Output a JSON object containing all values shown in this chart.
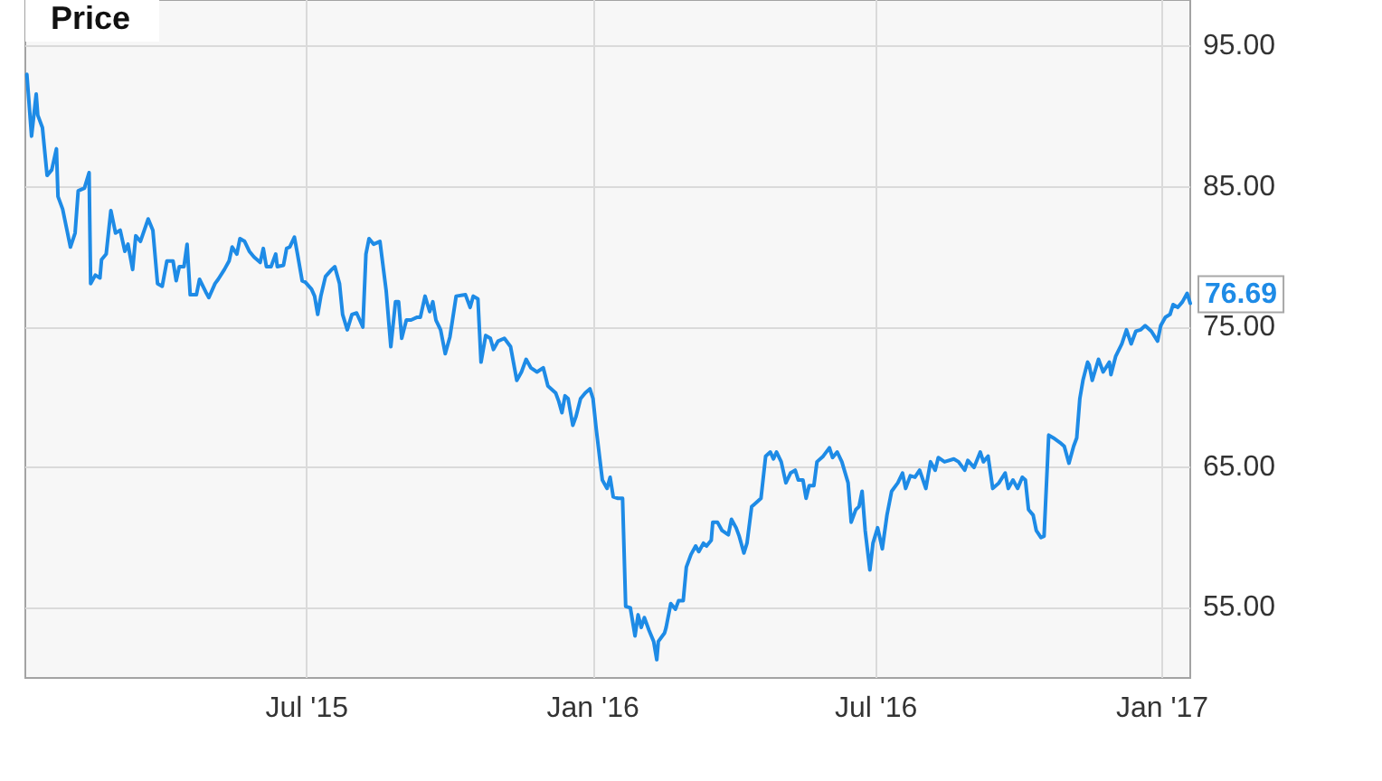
{
  "chart_data": {
    "type": "line",
    "title": "Price",
    "color": "#1e8be6",
    "x": [
      "2015-01-02",
      "2015-01-05",
      "2015-01-08",
      "2015-01-09",
      "2015-01-12",
      "2015-01-15",
      "2015-01-18",
      "2015-01-21",
      "2015-01-22",
      "2015-01-25",
      "2015-01-30",
      "2015-02-02",
      "2015-02-04",
      "2015-02-08",
      "2015-02-11",
      "2015-02-12",
      "2015-02-15",
      "2015-02-18",
      "2015-02-19",
      "2015-02-22",
      "2015-02-25",
      "2015-02-28",
      "2015-03-03",
      "2015-03-06",
      "2015-03-08",
      "2015-03-11",
      "2015-03-13",
      "2015-03-16",
      "2015-03-21",
      "2015-03-24",
      "2015-03-27",
      "2015-03-30",
      "2015-04-02",
      "2015-04-06",
      "2015-04-08",
      "2015-04-10",
      "2015-04-13",
      "2015-04-15",
      "2015-04-17",
      "2015-04-21",
      "2015-04-23",
      "2015-04-27",
      "2015-04-29",
      "2015-05-03",
      "2015-05-05",
      "2015-05-09",
      "2015-05-12",
      "2015-05-14",
      "2015-05-17",
      "2015-05-19",
      "2015-05-22",
      "2015-05-25",
      "2015-05-28",
      "2015-06-01",
      "2015-06-03",
      "2015-06-05",
      "2015-06-08",
      "2015-06-11",
      "2015-06-12",
      "2015-06-16",
      "2015-06-18",
      "2015-06-20",
      "2015-06-23",
      "2015-06-25",
      "2015-06-28",
      "2015-06-30",
      "2015-07-04",
      "2015-07-06",
      "2015-07-08",
      "2015-07-10",
      "2015-07-13",
      "2015-07-17",
      "2015-07-19",
      "2015-07-22",
      "2015-07-24",
      "2015-07-27",
      "2015-07-30",
      "2015-08-02",
      "2015-08-06",
      "2015-08-08",
      "2015-08-10",
      "2015-08-13",
      "2015-08-17",
      "2015-08-21",
      "2015-08-24",
      "2015-08-27",
      "2015-08-29",
      "2015-08-31",
      "2015-09-03",
      "2015-09-06",
      "2015-09-10",
      "2015-09-12",
      "2015-09-15",
      "2015-09-18",
      "2015-09-20",
      "2015-09-22",
      "2015-09-25",
      "2015-09-28",
      "2015-10-01",
      "2015-10-05",
      "2015-10-11",
      "2015-10-14",
      "2015-10-16",
      "2015-10-19",
      "2015-10-21",
      "2015-10-24",
      "2015-10-27",
      "2015-10-29",
      "2015-11-01",
      "2015-11-05",
      "2015-11-09",
      "2015-11-13",
      "2015-11-16",
      "2015-11-19",
      "2015-11-22",
      "2015-11-26",
      "2015-11-30",
      "2015-12-03",
      "2015-12-08",
      "2015-12-10",
      "2015-12-12",
      "2015-12-14",
      "2015-12-16",
      "2015-12-19",
      "2015-12-21",
      "2015-12-24",
      "2015-12-27",
      "2015-12-30",
      "2016-01-01",
      "2016-01-03",
      "2016-01-07",
      "2016-01-10",
      "2016-01-12",
      "2016-01-14",
      "2016-01-17",
      "2016-01-20",
      "2016-01-22",
      "2016-01-25",
      "2016-01-28",
      "2016-01-30",
      "2016-02-01",
      "2016-02-03",
      "2016-02-06",
      "2016-02-09",
      "2016-02-11",
      "2016-02-12",
      "2016-02-16",
      "2016-02-17",
      "2016-02-20",
      "2016-02-23",
      "2016-02-25",
      "2016-02-28",
      "2016-03-01",
      "2016-03-04",
      "2016-03-07",
      "2016-03-09",
      "2016-03-12",
      "2016-03-14",
      "2016-03-17",
      "2016-03-18",
      "2016-03-21",
      "2016-03-24",
      "2016-03-28",
      "2016-03-30",
      "2016-04-02",
      "2016-04-04",
      "2016-04-07",
      "2016-04-09",
      "2016-04-12",
      "2016-04-14",
      "2016-04-18",
      "2016-04-21",
      "2016-04-24",
      "2016-04-26",
      "2016-04-28",
      "2016-05-01",
      "2016-05-04",
      "2016-05-07",
      "2016-05-10",
      "2016-05-12",
      "2016-05-15",
      "2016-05-17",
      "2016-05-19",
      "2016-05-22",
      "2016-05-24",
      "2016-05-28",
      "2016-06-01",
      "2016-06-03",
      "2016-06-06",
      "2016-06-09",
      "2016-06-13",
      "2016-06-15",
      "2016-06-18",
      "2016-06-20",
      "2016-06-22",
      "2016-06-24",
      "2016-06-27",
      "2016-06-29",
      "2016-07-02",
      "2016-07-05",
      "2016-07-08",
      "2016-07-11",
      "2016-07-15",
      "2016-07-18",
      "2016-07-20",
      "2016-07-23",
      "2016-07-26",
      "2016-07-29",
      "2016-08-02",
      "2016-08-05",
      "2016-08-08",
      "2016-08-10",
      "2016-08-14",
      "2016-08-20",
      "2016-08-23",
      "2016-08-27",
      "2016-08-29",
      "2016-09-02",
      "2016-09-06",
      "2016-09-08",
      "2016-09-11",
      "2016-09-14",
      "2016-09-18",
      "2016-09-22",
      "2016-09-24",
      "2016-09-27",
      "2016-09-30",
      "2016-10-03",
      "2016-10-05",
      "2016-10-07",
      "2016-10-10",
      "2016-10-12",
      "2016-10-15",
      "2016-10-17",
      "2016-10-20",
      "2016-10-23",
      "2016-10-28",
      "2016-10-30",
      "2016-11-02",
      "2016-11-05",
      "2016-11-07",
      "2016-11-09",
      "2016-11-11",
      "2016-11-14",
      "2016-11-15",
      "2016-11-17",
      "2016-11-21",
      "2016-11-24",
      "2016-11-28",
      "2016-11-29",
      "2016-12-02",
      "2016-12-06",
      "2016-12-09",
      "2016-12-12",
      "2016-12-15",
      "2016-12-18",
      "2016-12-21",
      "2016-12-25",
      "2016-12-29",
      "2016-12-31",
      "2017-01-03",
      "2017-01-06",
      "2017-01-08",
      "2017-01-11",
      "2017-01-14",
      "2017-01-17",
      "2017-01-19"
    ],
    "values": [
      93.0,
      88.6,
      91.6,
      90.1,
      89.2,
      85.8,
      86.2,
      87.7,
      84.3,
      83.4,
      80.7,
      81.7,
      84.7,
      84.9,
      86.0,
      78.1,
      78.7,
      78.5,
      79.8,
      80.2,
      83.3,
      81.7,
      81.9,
      80.4,
      80.9,
      79.1,
      81.5,
      81.1,
      82.7,
      81.9,
      78.1,
      77.9,
      79.7,
      79.7,
      78.3,
      79.3,
      79.3,
      80.9,
      77.3,
      77.3,
      78.4,
      77.5,
      77.1,
      78.1,
      78.4,
      79.1,
      79.7,
      80.7,
      80.2,
      81.3,
      81.1,
      80.4,
      80.0,
      79.6,
      80.6,
      79.3,
      79.3,
      80.2,
      79.3,
      79.4,
      80.6,
      80.7,
      81.4,
      80.2,
      78.3,
      78.2,
      77.7,
      77.2,
      75.9,
      77.2,
      78.6,
      79.1,
      79.3,
      78.1,
      75.9,
      74.8,
      75.9,
      76.0,
      75.0,
      80.2,
      81.3,
      80.9,
      81.1,
      77.6,
      73.6,
      76.8,
      76.8,
      74.2,
      75.5,
      75.5,
      75.7,
      75.7,
      77.2,
      76.1,
      76.8,
      75.5,
      74.8,
      73.1,
      74.3,
      77.2,
      77.3,
      76.4,
      77.2,
      77.0,
      72.5,
      74.4,
      74.2,
      73.4,
      74.0,
      74.2,
      73.6,
      71.2,
      71.8,
      72.7,
      72.1,
      71.8,
      72.1,
      70.8,
      70.3,
      69.7,
      68.9,
      70.1,
      69.9,
      68.0,
      68.6,
      69.9,
      70.3,
      70.6,
      69.9,
      67.8,
      64.1,
      63.5,
      64.3,
      62.9,
      62.8,
      62.8,
      55.1,
      55.0,
      53.0,
      54.5,
      53.6,
      54.3,
      53.4,
      52.6,
      51.3,
      52.6,
      53.2,
      53.6,
      55.3,
      54.9,
      55.5,
      55.5,
      57.9,
      58.8,
      59.4,
      59.0,
      59.6,
      59.4,
      59.8,
      61.1,
      61.1,
      60.5,
      60.2,
      61.3,
      60.7,
      60.1,
      58.9,
      59.6,
      62.2,
      62.4,
      62.8,
      65.8,
      66.1,
      65.6,
      66.1,
      65.4,
      63.9,
      64.6,
      64.8,
      64.1,
      64.1,
      62.8,
      63.7,
      63.7,
      65.4,
      65.8,
      66.4,
      65.7,
      66.1,
      65.4,
      63.9,
      61.1,
      62.0,
      62.2,
      63.3,
      60.5,
      57.7,
      59.6,
      60.7,
      59.2,
      61.6,
      63.3,
      63.9,
      64.6,
      63.5,
      64.4,
      64.3,
      64.8,
      63.5,
      65.4,
      64.8,
      65.7,
      65.4,
      65.6,
      65.4,
      64.8,
      65.5,
      65.0,
      66.1,
      65.4,
      65.8,
      63.5,
      63.9,
      64.6,
      63.5,
      64.1,
      63.5,
      64.3,
      64.1,
      62.0,
      61.6,
      60.5,
      60.0,
      60.1,
      67.3,
      67.1,
      66.7,
      66.5,
      65.3,
      66.5,
      67.1,
      69.9,
      71.2,
      72.5,
      72.3,
      71.2,
      72.7,
      71.8,
      72.5,
      71.6,
      72.9,
      73.8,
      74.8,
      73.8,
      74.7,
      74.8,
      75.1,
      74.7,
      74.0,
      75.1,
      75.7,
      75.9,
      76.6,
      76.4,
      76.8,
      77.4,
      76.69
    ],
    "value_labels": [
      null,
      null,
      null,
      null,
      null,
      null,
      null,
      null,
      null,
      null,
      null,
      null,
      null,
      null,
      null,
      null,
      null,
      null,
      null,
      null,
      null,
      null,
      null,
      null,
      null,
      null,
      null,
      null,
      null,
      null,
      null,
      null,
      null,
      null,
      null,
      null,
      null,
      null,
      null,
      null,
      null,
      null,
      null,
      null,
      null,
      null,
      null,
      null,
      null,
      null,
      null,
      null,
      null,
      null,
      null,
      null,
      null,
      null,
      null,
      null,
      null,
      null,
      null,
      null,
      null,
      null,
      null,
      null,
      null,
      null,
      null,
      null,
      null,
      null,
      null,
      null,
      null,
      null,
      null,
      null,
      null,
      null,
      null,
      null,
      null,
      null,
      null,
      null,
      null,
      null,
      null,
      null,
      null,
      null,
      null,
      null,
      null,
      null,
      null,
      null,
      null,
      null,
      null,
      null,
      null,
      null,
      null,
      null,
      null,
      null,
      null,
      null,
      null,
      null,
      null,
      null,
      null,
      null,
      null,
      null,
      null,
      null,
      null,
      null,
      null,
      null,
      null,
      null,
      null,
      null,
      null,
      null,
      null,
      null,
      null,
      null,
      null,
      null,
      null,
      null,
      null,
      null,
      null,
      null,
      null,
      null,
      null,
      null,
      null,
      null,
      null,
      null,
      null,
      null,
      null,
      null,
      null,
      null,
      null,
      null,
      null,
      null,
      null,
      null,
      null,
      null,
      null,
      null,
      null,
      null,
      null,
      null,
      null,
      null,
      null,
      null,
      null,
      null,
      null,
      null,
      null,
      null,
      null,
      null,
      null,
      null,
      null,
      null,
      null,
      null,
      null,
      null,
      null,
      null,
      null,
      null,
      null,
      null,
      null,
      null,
      null,
      null,
      null,
      null,
      null,
      null,
      null,
      null,
      null,
      null,
      null,
      null,
      null,
      null,
      null,
      null,
      null,
      null,
      null,
      null,
      null,
      null,
      null,
      null,
      null,
      null,
      null,
      null,
      null,
      null,
      null,
      null,
      null,
      null,
      null,
      null,
      null,
      null,
      null,
      null,
      null,
      null,
      null,
      null,
      null,
      null,
      null,
      null,
      null,
      null,
      null,
      null,
      null,
      null,
      null,
      null,
      null,
      null,
      null,
      null,
      null,
      null,
      null,
      null,
      null,
      null,
      "76.69"
    ],
    "xlim": [
      "2015-01-01",
      "2017-01-19"
    ],
    "xticks": [
      {
        "value": "2015-07-01",
        "label": "Jul '15"
      },
      {
        "value": "2016-01-01",
        "label": "Jan '16"
      },
      {
        "value": "2016-07-01",
        "label": "Jul '16"
      },
      {
        "value": "2017-01-01",
        "label": "Jan '17"
      }
    ],
    "ylim": [
      50,
      98.3
    ],
    "yticks": [
      {
        "value": 55,
        "label": "55.00"
      },
      {
        "value": 65,
        "label": "65.00"
      },
      {
        "value": 75,
        "label": "75.00"
      },
      {
        "value": 85,
        "label": "85.00"
      },
      {
        "value": 95,
        "label": "95.00"
      }
    ],
    "grid": true
  }
}
